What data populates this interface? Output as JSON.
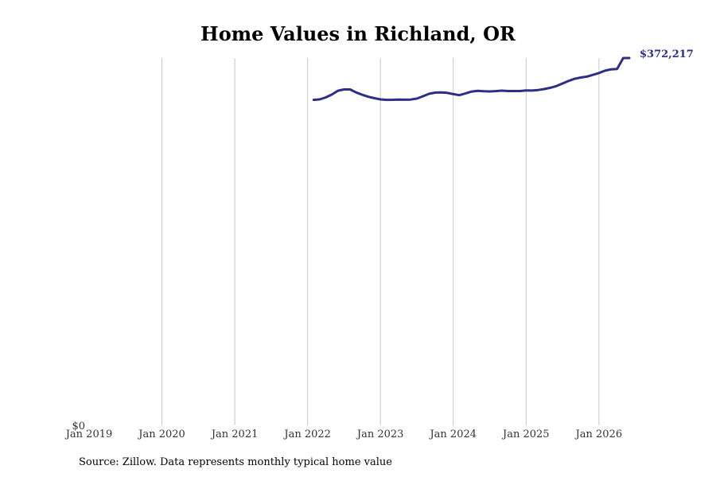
{
  "chart_data": {
    "type": "line",
    "title": "Home Values in Richland, OR",
    "xlabel": "",
    "ylabel": "",
    "source": "Source: Zillow. Data represents monthly typical home value",
    "grid": "vertical",
    "x_ticks": [
      "Jan 2019",
      "Jan 2020",
      "Jan 2021",
      "Jan 2022",
      "Jan 2023",
      "Jan 2024",
      "Jan 2025",
      "Jan 2026"
    ],
    "y_ticks": [
      "$0"
    ],
    "xlim": [
      "2019-01",
      "2026-06"
    ],
    "ylim": [
      0,
      372217
    ],
    "end_label": "$372,217",
    "colors": {
      "line": "#2e2e87",
      "grid": "#c8c8c8"
    },
    "series": [
      {
        "x": [
          "2022-02",
          "2022-03",
          "2022-04",
          "2022-05",
          "2022-06",
          "2022-07",
          "2022-08",
          "2022-09",
          "2022-10",
          "2022-11",
          "2022-12",
          "2023-01",
          "2023-02",
          "2023-03",
          "2023-04",
          "2023-05",
          "2023-06",
          "2023-07",
          "2023-08",
          "2023-09",
          "2023-10",
          "2023-11",
          "2023-12",
          "2024-01",
          "2024-02",
          "2024-03",
          "2024-04",
          "2024-05",
          "2024-06",
          "2024-07",
          "2024-08",
          "2024-09",
          "2024-10",
          "2024-11",
          "2024-12",
          "2025-01",
          "2025-02",
          "2025-03",
          "2025-04",
          "2025-05",
          "2025-06",
          "2025-07",
          "2025-08",
          "2025-09",
          "2025-10",
          "2025-11",
          "2025-12",
          "2026-01",
          "2026-02",
          "2026-03",
          "2026-04",
          "2026-05",
          "2026-06"
        ],
        "values": [
          329800,
          330300,
          332300,
          335200,
          339100,
          340400,
          340400,
          337300,
          335000,
          333000,
          331500,
          330300,
          329800,
          329900,
          330200,
          330000,
          330200,
          331100,
          333500,
          336000,
          337200,
          337400,
          336900,
          335600,
          334600,
          336300,
          338200,
          339000,
          338600,
          338400,
          338700,
          339200,
          338800,
          338800,
          338800,
          339400,
          339300,
          339800,
          340800,
          342100,
          343800,
          346400,
          349000,
          351200,
          352500,
          353400,
          355100,
          357100,
          359400,
          360800,
          361200,
          372217,
          372217
        ]
      }
    ]
  }
}
